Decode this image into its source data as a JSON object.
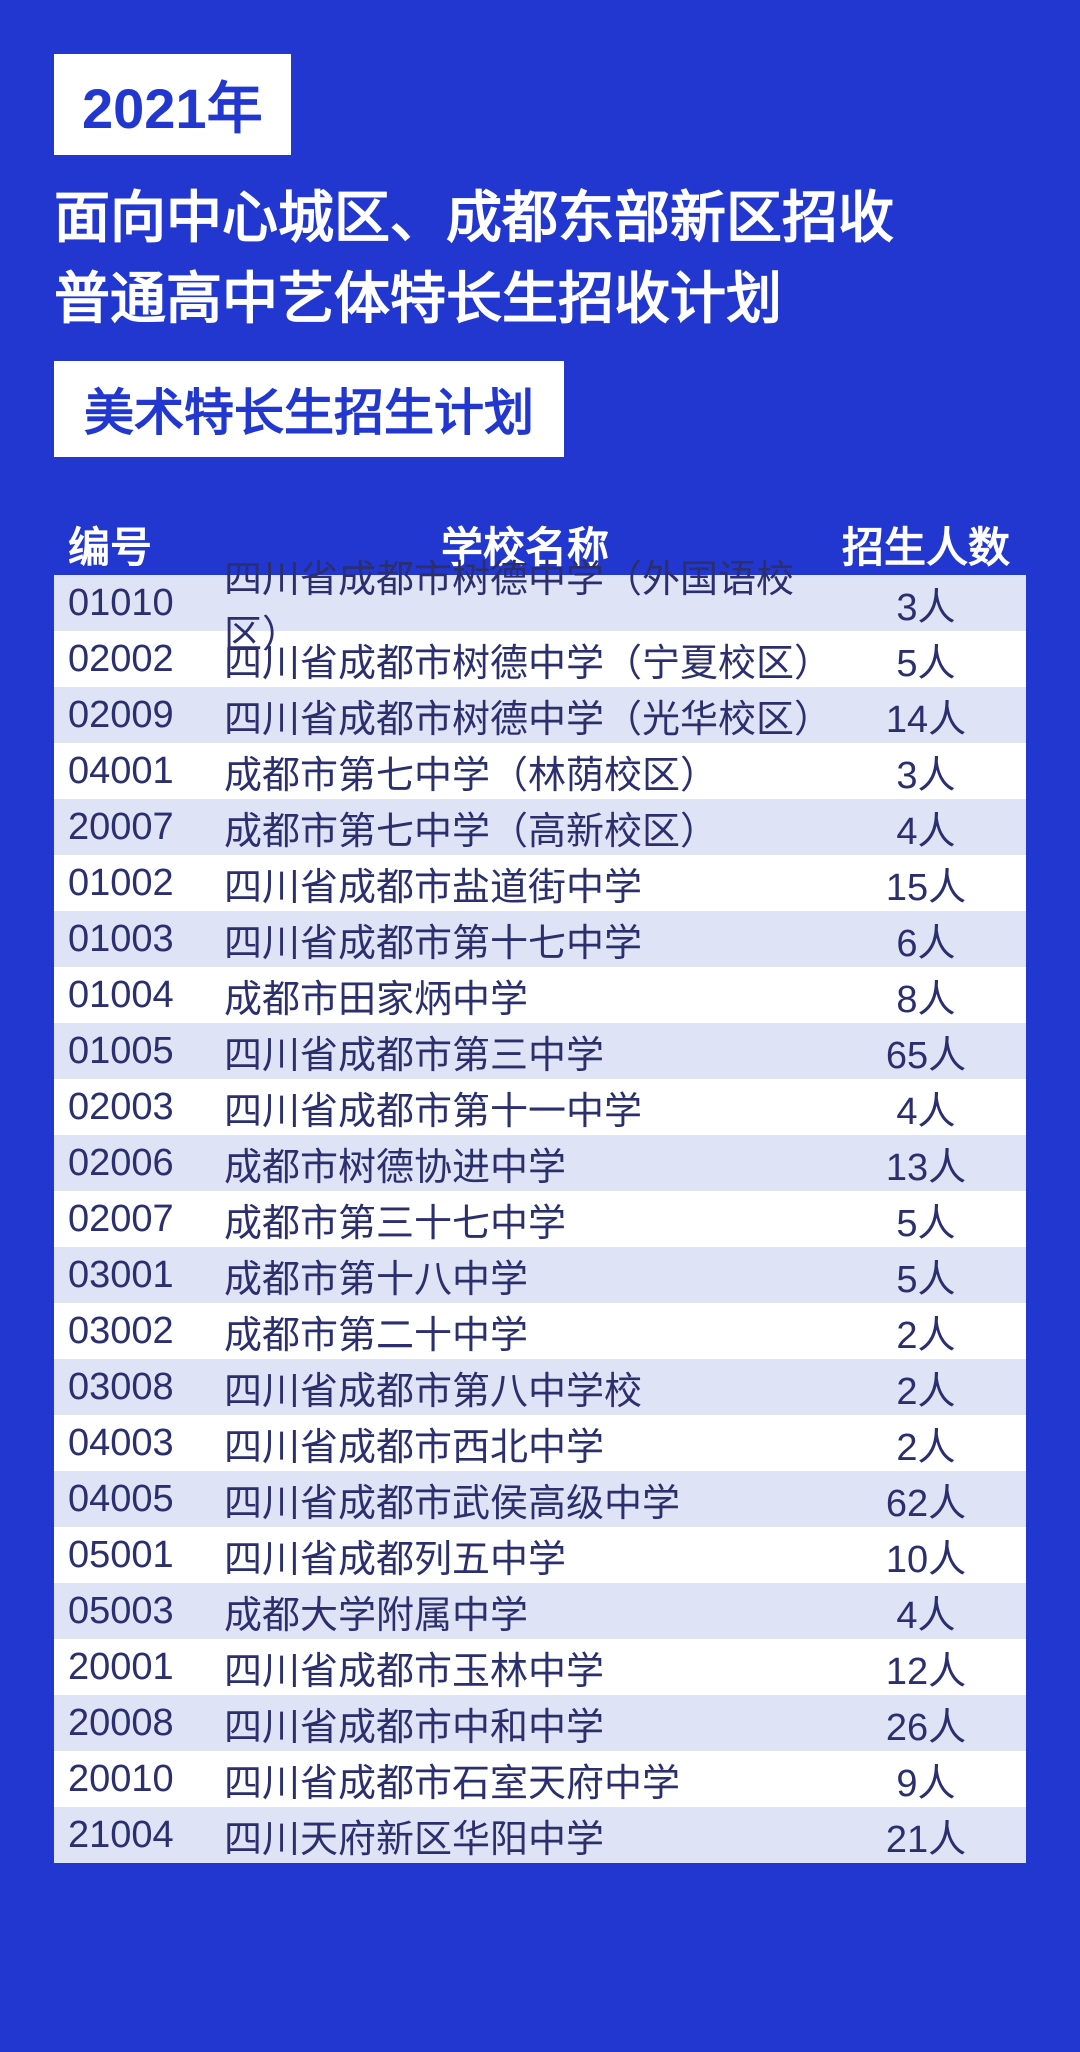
{
  "colors": {
    "page_bg": "#2237d0",
    "white": "#ffffff",
    "header_row_bg": "#2237d0",
    "row_odd_bg": "#dfe3f6",
    "row_even_bg": "#ffffff",
    "text_dark": "#2b2f6e"
  },
  "header": {
    "year": "2021年",
    "title_line1": "面向中心城区、成都东部新区招收",
    "title_line2": "普通高中艺体特长生招收计划",
    "subtitle": "美术特长生招生计划"
  },
  "table": {
    "columns": {
      "code": "编号",
      "name": "学校名称",
      "count": "招生人数"
    },
    "rows": [
      {
        "code": "01010",
        "name": "四川省成都市树德中学（外国语校区）",
        "count": "3人"
      },
      {
        "code": "02002",
        "name": "四川省成都市树德中学（宁夏校区）",
        "count": "5人"
      },
      {
        "code": "02009",
        "name": "四川省成都市树德中学（光华校区）",
        "count": "14人"
      },
      {
        "code": "04001",
        "name": "成都市第七中学（林荫校区）",
        "count": "3人"
      },
      {
        "code": "20007",
        "name": "成都市第七中学（高新校区）",
        "count": "4人"
      },
      {
        "code": "01002",
        "name": "四川省成都市盐道街中学",
        "count": "15人"
      },
      {
        "code": "01003",
        "name": "四川省成都市第十七中学",
        "count": "6人"
      },
      {
        "code": "01004",
        "name": "成都市田家炳中学",
        "count": "8人"
      },
      {
        "code": "01005",
        "name": "四川省成都市第三中学",
        "count": "65人"
      },
      {
        "code": "02003",
        "name": "四川省成都市第十一中学",
        "count": "4人"
      },
      {
        "code": "02006",
        "name": "成都市树德协进中学",
        "count": "13人"
      },
      {
        "code": "02007",
        "name": "成都市第三十七中学",
        "count": "5人"
      },
      {
        "code": "03001",
        "name": "成都市第十八中学",
        "count": "5人"
      },
      {
        "code": "03002",
        "name": "成都市第二十中学",
        "count": "2人"
      },
      {
        "code": "03008",
        "name": "四川省成都市第八中学校",
        "count": "2人"
      },
      {
        "code": "04003",
        "name": "四川省成都市西北中学",
        "count": "2人"
      },
      {
        "code": "04005",
        "name": "四川省成都市武侯高级中学",
        "count": "62人"
      },
      {
        "code": "05001",
        "name": "四川省成都列五中学",
        "count": "10人"
      },
      {
        "code": "05003",
        "name": "成都大学附属中学",
        "count": "4人"
      },
      {
        "code": "20001",
        "name": "四川省成都市玉林中学",
        "count": "12人"
      },
      {
        "code": "20008",
        "name": "四川省成都市中和中学",
        "count": "26人"
      },
      {
        "code": "20010",
        "name": "四川省成都市石室天府中学",
        "count": "9人"
      },
      {
        "code": "21004",
        "name": "四川天府新区华阳中学",
        "count": "21人"
      }
    ]
  }
}
